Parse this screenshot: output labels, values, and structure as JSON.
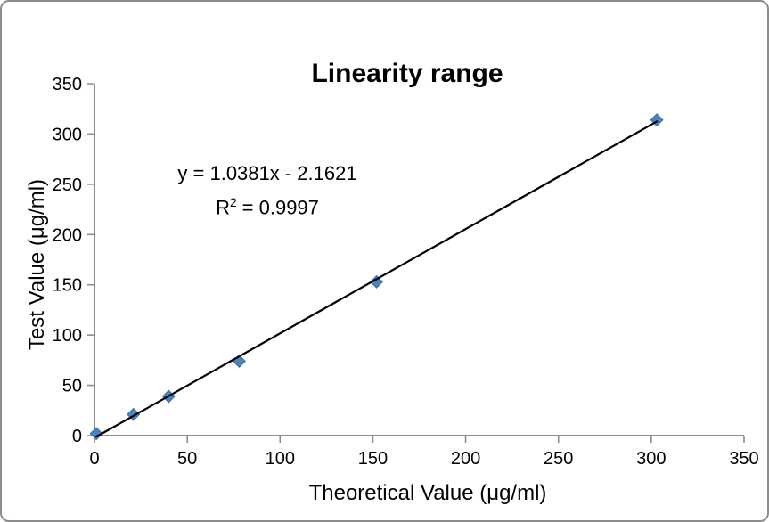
{
  "chart": {
    "title": "Linearity range",
    "annotation": {
      "equation": "y = 1.0381x - 2.1621",
      "r_label": "R",
      "r_exponent": "2",
      "r_value": " = 0.9997"
    },
    "x_axis_title": "Theoretical Value (μg/ml)",
    "y_axis_title": "Test Value (μg/ml)"
  },
  "chart_data": {
    "type": "scatter",
    "title": "Linearity range",
    "xlabel": "Theoretical Value (μg/ml)",
    "ylabel": "Test Value (μg/ml)",
    "x": [
      1,
      21,
      40,
      78,
      152,
      303
    ],
    "y": [
      2,
      21,
      39,
      74,
      153,
      314
    ],
    "trendline": {
      "slope": 1.0381,
      "intercept": -2.1621,
      "r_squared": 0.9997,
      "x_start": 1,
      "x_end": 303,
      "color": "#000000"
    },
    "xlim": [
      0,
      350
    ],
    "ylim": [
      0,
      350
    ],
    "x_ticks": [
      0,
      50,
      100,
      150,
      200,
      250,
      300,
      350
    ],
    "y_ticks": [
      0,
      50,
      100,
      150,
      200,
      250,
      300,
      350
    ],
    "grid": false,
    "legend": false,
    "marker": {
      "shape": "diamond",
      "color": "#4f81bd",
      "border_color": "#3f6da3"
    },
    "axis_color": "#8c8c8c"
  }
}
